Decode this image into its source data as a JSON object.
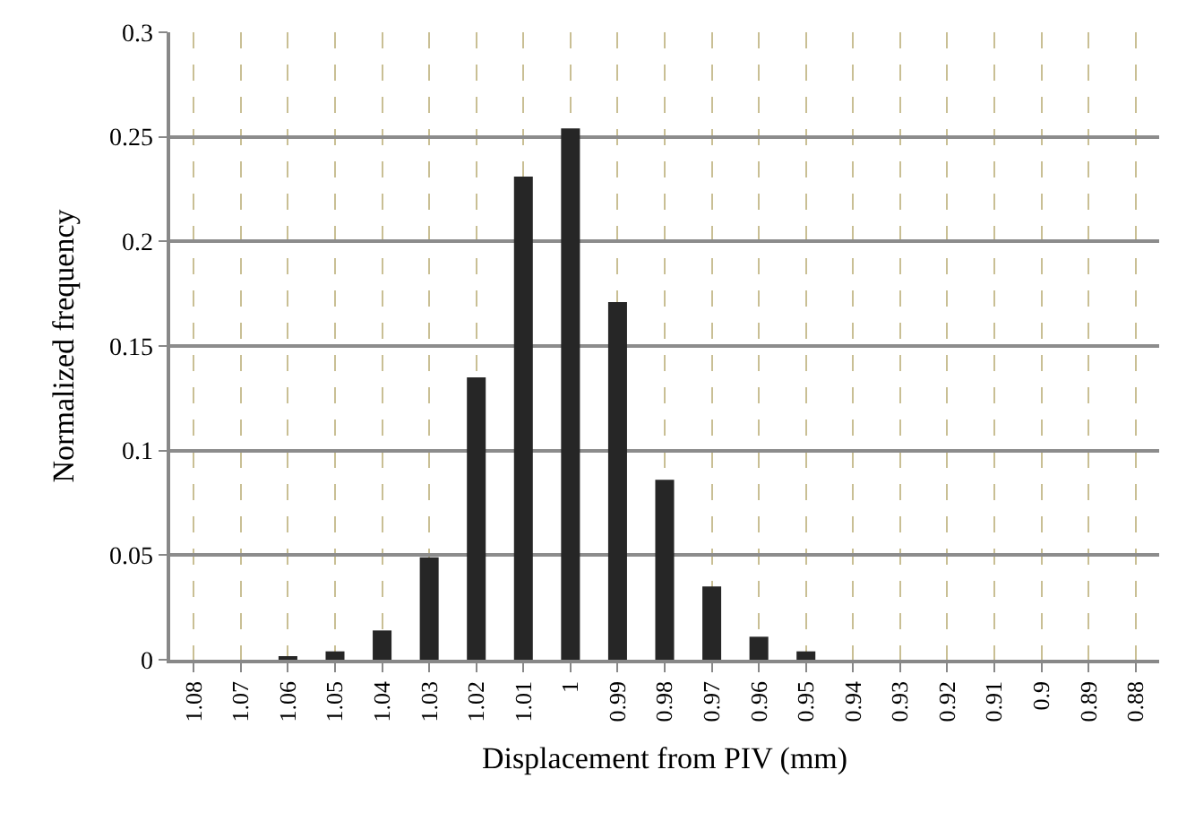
{
  "chart_data": {
    "type": "bar",
    "xlabel": "Displacement from PIV (mm)",
    "ylabel": "Normalized frequency",
    "categories": [
      "1.08",
      "1.07",
      "1.06",
      "1.05",
      "1.04",
      "1.03",
      "1.02",
      "1.01",
      "1",
      "0.99",
      "0.98",
      "0.97",
      "0.96",
      "0.95",
      "0.94",
      "0.93",
      "0.92",
      "0.91",
      "0.9",
      "0.89",
      "0.88"
    ],
    "values": [
      0,
      0,
      0.001,
      0.004,
      0.014,
      0.049,
      0.135,
      0.231,
      0.254,
      0.171,
      0.086,
      0.035,
      0.011,
      0.004,
      0,
      0,
      0,
      0,
      0,
      0,
      0
    ],
    "color": "#262626",
    "ylim": [
      0,
      0.3
    ],
    "yticks": [
      {
        "value": 0,
        "label": "0"
      },
      0.05,
      0.1,
      0.15,
      0.2,
      0.25,
      0.3
    ],
    "grid": true,
    "legend": false
  }
}
